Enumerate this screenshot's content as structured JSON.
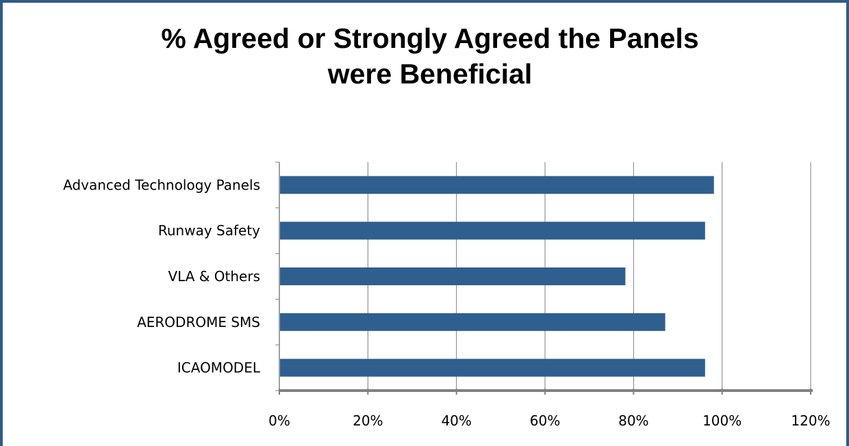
{
  "chart_data": {
    "type": "bar",
    "orientation": "horizontal",
    "title_lines": [
      "% Agreed or Strongly Agreed the Panels",
      "were Beneficial"
    ],
    "categories": [
      "Advanced Technology Panels",
      "Runway Safety",
      "VLA & Others",
      "AERODROME SMS",
      "ICAOMODEL"
    ],
    "values": [
      0.98,
      0.96,
      0.78,
      0.87,
      0.96
    ],
    "xlim": [
      0,
      1.2
    ],
    "xticks": [
      "0%",
      "20%",
      "40%",
      "60%",
      "80%",
      "100%",
      "120%"
    ],
    "grid": "vertical",
    "legend": "none",
    "bar_color": "#2F5F8E",
    "axis_color": "#808080",
    "grid_color": "#7F7F7F"
  }
}
